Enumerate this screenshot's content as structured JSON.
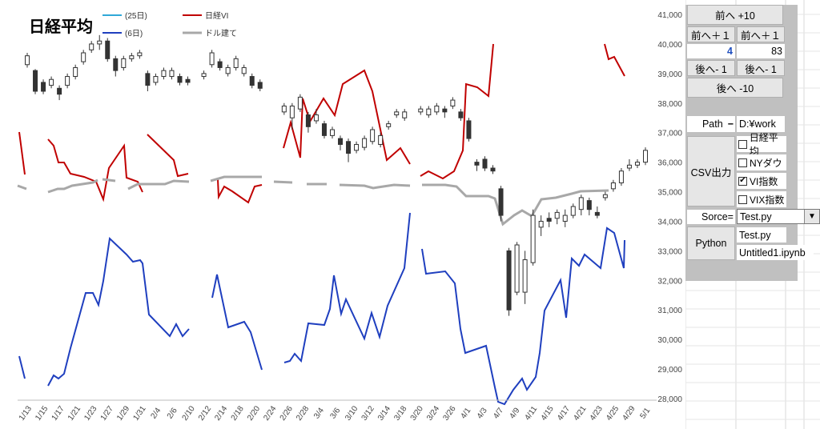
{
  "chart_data": {
    "type": "candlestick",
    "title": "日経平均",
    "legend": [
      {
        "name": "(25日)",
        "color": "#2fa8d8"
      },
      {
        "name": "日経VI",
        "color": "#c00000"
      },
      {
        "name": "(6日)",
        "color": "#1f3fbf"
      },
      {
        "name": "ドル建て",
        "color": "#a8a8a8"
      }
    ],
    "ylim": [
      28000,
      41000
    ],
    "yticks": [
      "41,000",
      "40,000",
      "39,000",
      "38,000",
      "37,000",
      "36,000",
      "35,000",
      "34,000",
      "33,000",
      "32,000",
      "31,000",
      "30,000",
      "29,000",
      "28,000"
    ],
    "xticks": [
      "1/13",
      "1/15",
      "1/17",
      "1/21",
      "1/23",
      "1/27",
      "1/29",
      "1/31",
      "2/4",
      "2/6",
      "2/10",
      "2/12",
      "2/14",
      "2/18",
      "2/20",
      "2/24",
      "2/26",
      "2/28",
      "3/4",
      "3/6",
      "3/10",
      "3/12",
      "3/14",
      "3/18",
      "3/20",
      "3/24",
      "3/26",
      "4/1",
      "4/3",
      "4/7",
      "4/9",
      "4/11",
      "4/15",
      "4/17",
      "4/21",
      "4/23",
      "4/25",
      "4/29",
      "5/1"
    ],
    "candles": [
      {
        "o": 39300,
        "c": 39600,
        "h": 39700,
        "l": 39200
      },
      {
        "o": 39100,
        "c": 38400,
        "h": 39150,
        "l": 38300
      },
      {
        "o": 38700,
        "c": 38400,
        "h": 38800,
        "l": 38300
      },
      {
        "o": 38600,
        "c": 38800,
        "h": 38900,
        "l": 38500
      },
      {
        "o": 38500,
        "c": 38300,
        "h": 38600,
        "l": 38100
      },
      {
        "o": 38600,
        "c": 38900,
        "h": 39000,
        "l": 38500
      },
      {
        "o": 38900,
        "c": 39200,
        "h": 39300,
        "l": 38800
      },
      {
        "o": 39400,
        "c": 39700,
        "h": 39800,
        "l": 39300
      },
      {
        "o": 39800,
        "c": 40000,
        "h": 40100,
        "l": 39700
      },
      {
        "o": 40000,
        "c": 40100,
        "h": 40300,
        "l": 39800
      },
      {
        "o": 40100,
        "c": 39500,
        "h": 40200,
        "l": 39400
      },
      {
        "o": 39500,
        "c": 39100,
        "h": 39600,
        "l": 38900
      },
      {
        "o": 39200,
        "c": 39500,
        "h": 39600,
        "l": 39100
      },
      {
        "o": 39500,
        "c": 39600,
        "h": 39700,
        "l": 39400
      },
      {
        "o": 39600,
        "c": 39700,
        "h": 39800,
        "l": 39500
      },
      {
        "o": 39000,
        "c": 38600,
        "h": 39100,
        "l": 38400
      },
      {
        "o": 38700,
        "c": 38900,
        "h": 39000,
        "l": 38600
      },
      {
        "o": 38900,
        "c": 39100,
        "h": 39200,
        "l": 38800
      },
      {
        "o": 38900,
        "c": 39100,
        "h": 39200,
        "l": 38800
      },
      {
        "o": 38900,
        "c": 38700,
        "h": 39000,
        "l": 38600
      },
      {
        "o": 38800,
        "c": 38700,
        "h": 38900,
        "l": 38600
      },
      {
        "o": null,
        "c": null,
        "h": null,
        "l": null
      },
      {
        "o": 38900,
        "c": 39000,
        "h": 39100,
        "l": 38800
      },
      {
        "o": 39300,
        "c": 39700,
        "h": 39800,
        "l": 39200
      },
      {
        "o": 39400,
        "c": 39200,
        "h": 39500,
        "l": 39100
      },
      {
        "o": 39000,
        "c": 39200,
        "h": 39300,
        "l": 38900
      },
      {
        "o": 39200,
        "c": 39500,
        "h": 39600,
        "l": 39100
      },
      {
        "o": 39000,
        "c": 39200,
        "h": 39300,
        "l": 38900
      },
      {
        "o": 38900,
        "c": 38600,
        "h": 39000,
        "l": 38500
      },
      {
        "o": 38700,
        "c": 38500,
        "h": 38800,
        "l": 38400
      },
      {
        "o": null,
        "c": null,
        "h": null,
        "l": null
      },
      {
        "o": null,
        "c": null,
        "h": null,
        "l": null
      },
      {
        "o": 37700,
        "c": 37900,
        "h": 38000,
        "l": 37600
      },
      {
        "o": 37500,
        "c": 37900,
        "h": 38000,
        "l": 37100
      },
      {
        "o": 37800,
        "c": 38200,
        "h": 38300,
        "l": 37700
      },
      {
        "o": 37600,
        "c": 37200,
        "h": 37700,
        "l": 37000
      },
      {
        "o": 37400,
        "c": 37600,
        "h": 37800,
        "l": 37300
      },
      {
        "o": 37300,
        "c": 36900,
        "h": 37400,
        "l": 36800
      },
      {
        "o": 36900,
        "c": 37100,
        "h": 37200,
        "l": 36800
      },
      {
        "o": 36800,
        "c": 36600,
        "h": 36900,
        "l": 36400
      },
      {
        "o": 36700,
        "c": 36300,
        "h": 36800,
        "l": 36000
      },
      {
        "o": 36400,
        "c": 36600,
        "h": 36700,
        "l": 36300
      },
      {
        "o": 36500,
        "c": 36800,
        "h": 36900,
        "l": 36400
      },
      {
        "o": 36700,
        "c": 37100,
        "h": 37200,
        "l": 36600
      },
      {
        "o": 36600,
        "c": 36900,
        "h": 37000,
        "l": 36500
      },
      {
        "o": 37200,
        "c": 37300,
        "h": 37400,
        "l": 37100
      },
      {
        "o": 37600,
        "c": 37700,
        "h": 37800,
        "l": 37500
      },
      {
        "o": 37500,
        "c": 37700,
        "h": 37800,
        "l": 37400
      },
      {
        "o": null,
        "c": null,
        "h": null,
        "l": null
      },
      {
        "o": 37700,
        "c": 37800,
        "h": 37900,
        "l": 37600
      },
      {
        "o": 37600,
        "c": 37800,
        "h": 37900,
        "l": 37500
      },
      {
        "o": 37700,
        "c": 37900,
        "h": 38000,
        "l": 37600
      },
      {
        "o": 37800,
        "c": 37700,
        "h": 37900,
        "l": 37500
      },
      {
        "o": 37900,
        "c": 38100,
        "h": 38200,
        "l": 37800
      },
      {
        "o": 37700,
        "c": 37500,
        "h": 37800,
        "l": 37400
      },
      {
        "o": 37400,
        "c": 36800,
        "h": 37500,
        "l": 36700
      },
      {
        "o": 36000,
        "c": 35900,
        "h": 36100,
        "l": 35700
      },
      {
        "o": 36100,
        "c": 35800,
        "h": 36200,
        "l": 35700
      },
      {
        "o": 35800,
        "c": 35700,
        "h": 35900,
        "l": 35600
      },
      {
        "o": 35100,
        "c": 34200,
        "h": 35200,
        "l": 34000
      },
      {
        "o": 33000,
        "c": 31000,
        "h": 33100,
        "l": 30800
      },
      {
        "o": 31600,
        "c": 33200,
        "h": 33300,
        "l": 31500
      },
      {
        "o": 31600,
        "c": 32700,
        "h": 33000,
        "l": 31200
      },
      {
        "o": 32600,
        "c": 34200,
        "h": 34400,
        "l": 32500
      },
      {
        "o": 33800,
        "c": 34000,
        "h": 34200,
        "l": 33500
      },
      {
        "o": 34100,
        "c": 34000,
        "h": 34300,
        "l": 33800
      },
      {
        "o": 34100,
        "c": 34300,
        "h": 34400,
        "l": 33900
      },
      {
        "o": 34000,
        "c": 34200,
        "h": 34400,
        "l": 33800
      },
      {
        "o": 34200,
        "c": 34500,
        "h": 34600,
        "l": 34100
      },
      {
        "o": 34400,
        "c": 34800,
        "h": 34900,
        "l": 34200
      },
      {
        "o": 34700,
        "c": 34400,
        "h": 34800,
        "l": 34200
      },
      {
        "o": 34300,
        "c": 34200,
        "h": 34500,
        "l": 34100
      },
      {
        "o": 34800,
        "c": 34900,
        "h": 35000,
        "l": 34700
      },
      {
        "o": 35100,
        "c": 35300,
        "h": 35400,
        "l": 35000
      },
      {
        "o": 35300,
        "c": 35700,
        "h": 35800,
        "l": 35200
      },
      {
        "o": 35800,
        "c": 35900,
        "h": 36100,
        "l": 35700
      },
      {
        "o": 35900,
        "c": 36000,
        "h": 36100,
        "l": 35800
      },
      {
        "o": 36000,
        "c": 36400,
        "h": 36500,
        "l": 35900
      }
    ]
  },
  "panel": {
    "btn_plus10": "前へ +10",
    "btn_plus1a": "前へ＋１",
    "btn_plus1b": "前へ＋１",
    "val_left": "4",
    "val_right": "83",
    "btn_minus1a": "後へ- 1",
    "btn_minus1b": "後へ- 1",
    "btn_minus10": "後へ -10",
    "path_label": "Path",
    "path_value": "D:¥work",
    "csv_button": "CSV出力",
    "chk_nikkei": "日経平均",
    "chk_nydow": "NYダウ",
    "chk_vi": "VI指数",
    "chk_vix": "VIX指数",
    "source_label": "Sorce=",
    "source_value": "Test.py",
    "python_button": "Python",
    "file1": "Test.py",
    "file2": "Untitled1.ipynb"
  }
}
